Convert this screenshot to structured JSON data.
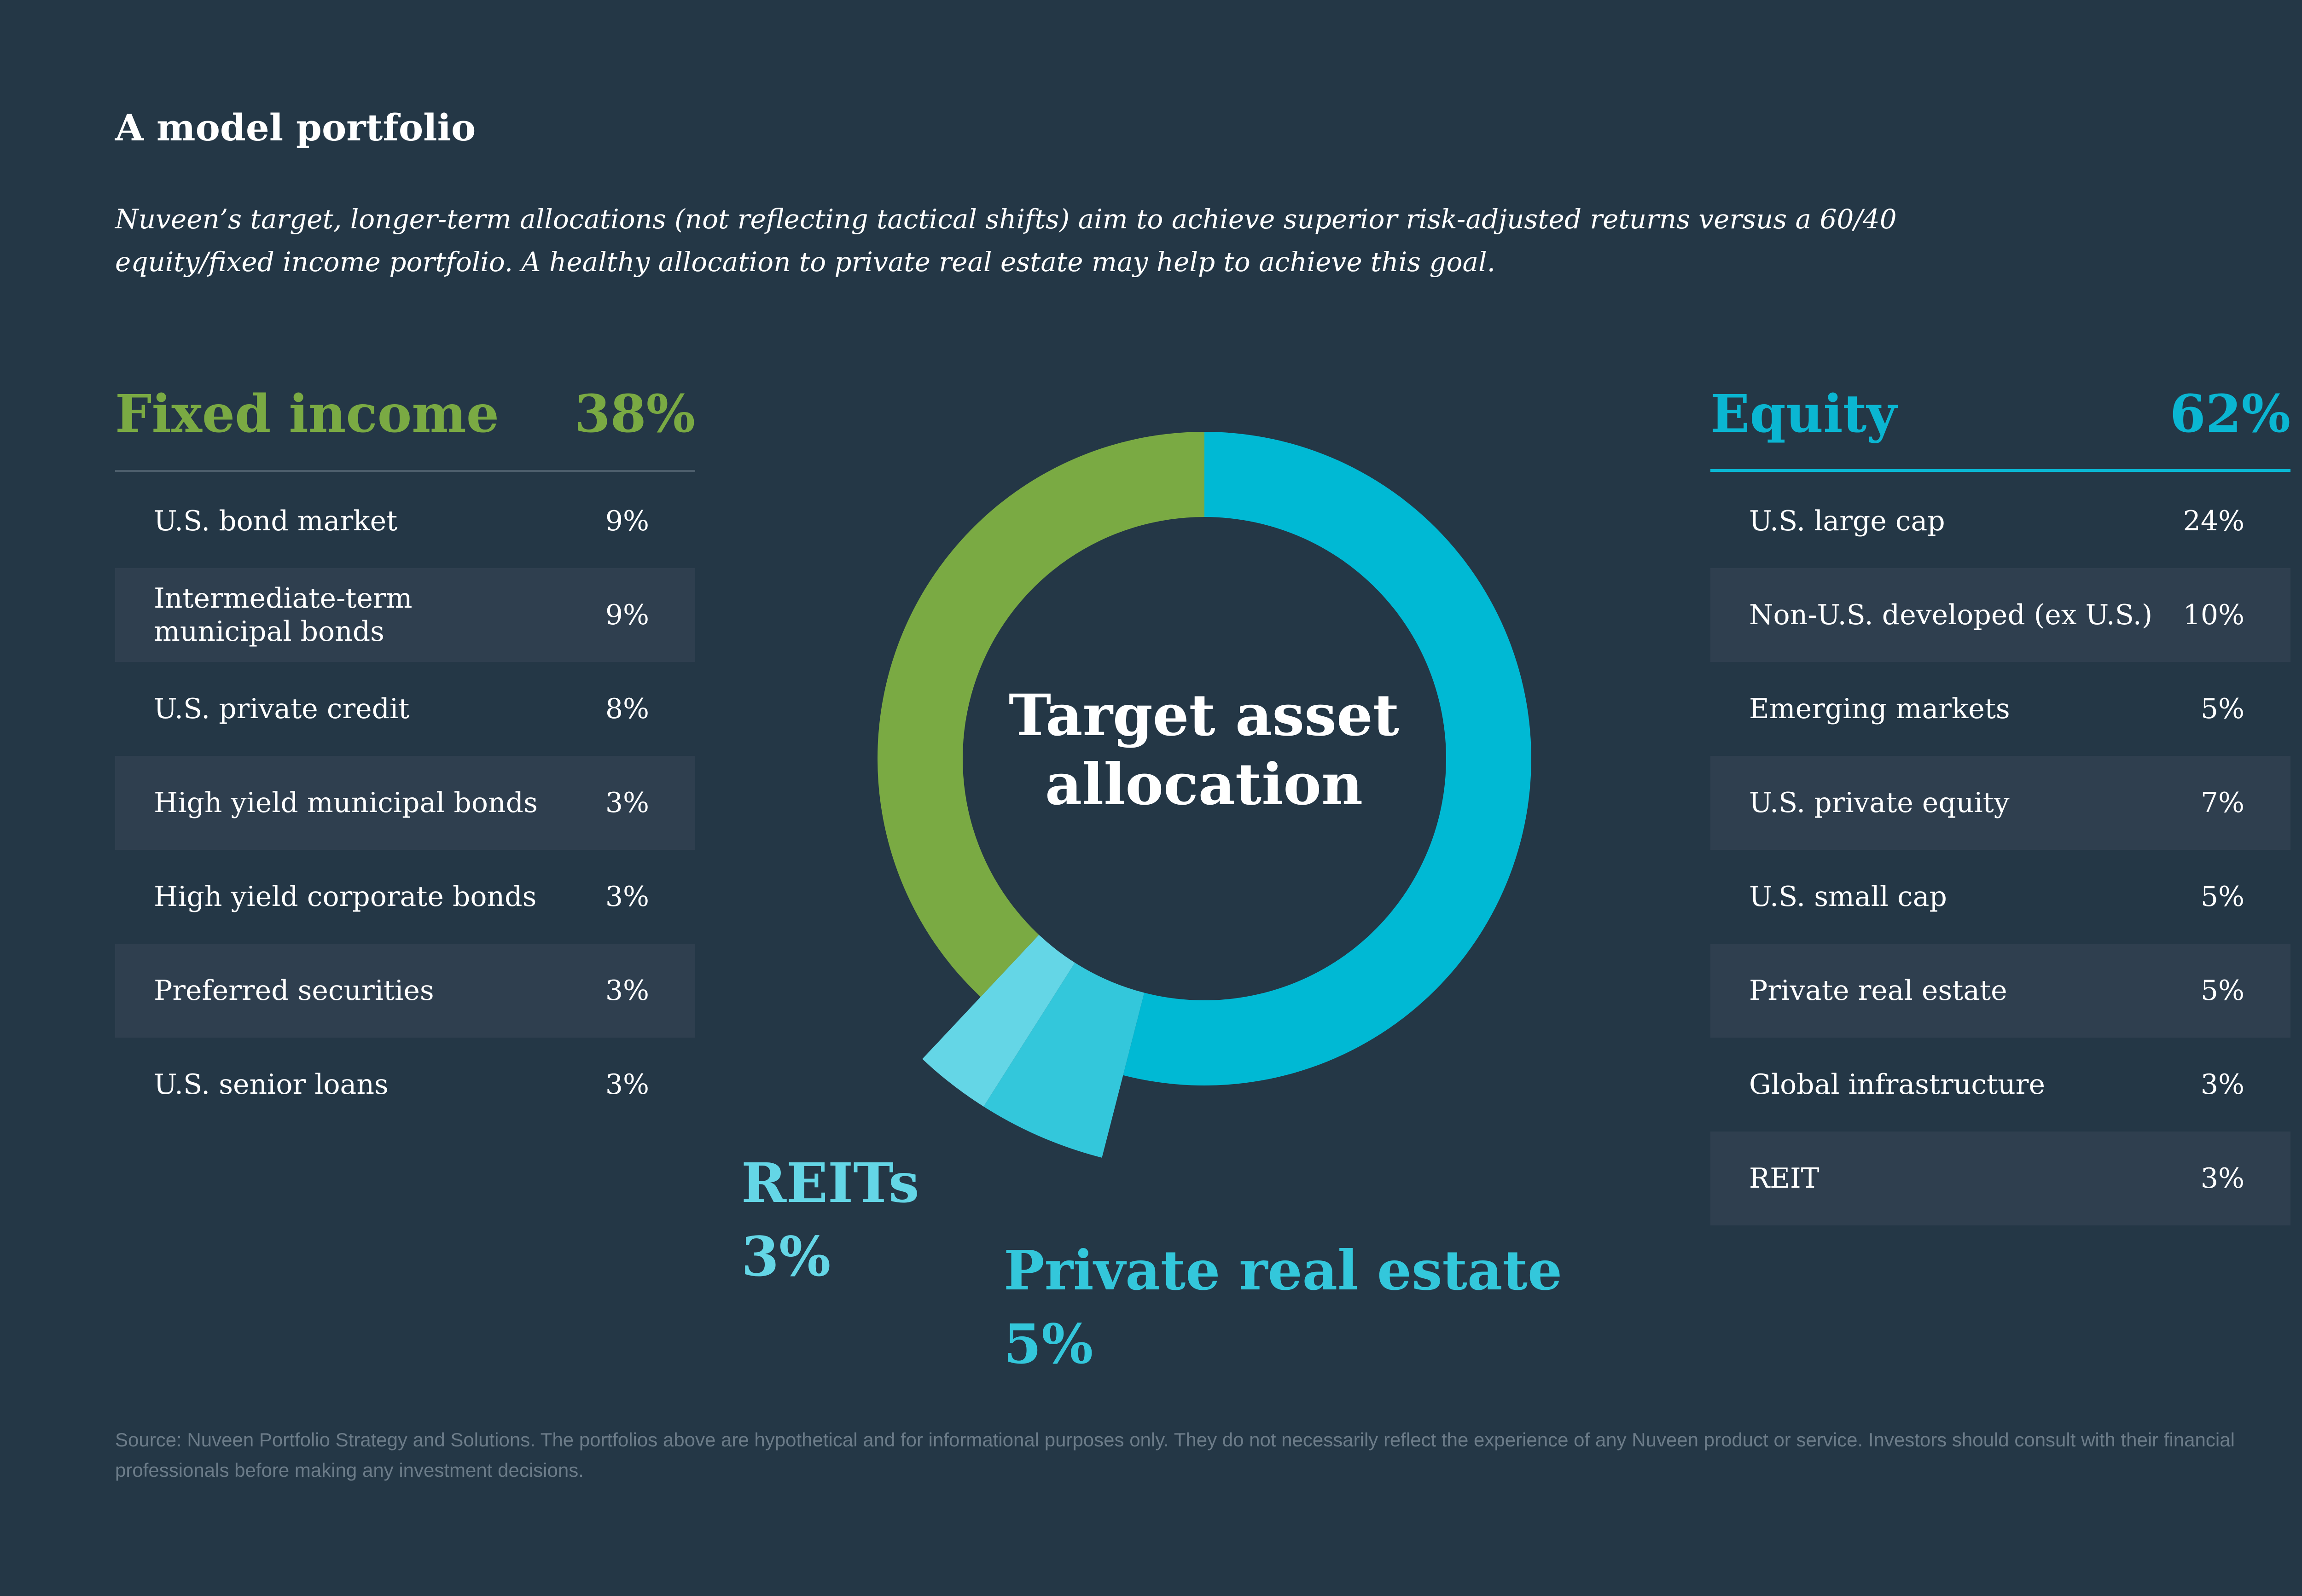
{
  "title": "A model portfolio",
  "subtitle": "Nuveen’s target, longer-term allocations (not reflecting tactical shifts) aim to achieve superior risk-adjusted returns versus a 60/40 equity/fixed income portfolio. A healthy allocation to private real estate may help to achieve this goal.",
  "fixed_income": {
    "label": "Fixed income",
    "total": "38%",
    "rows": [
      {
        "label": "U.S. bond market",
        "value": "9%"
      },
      {
        "label": "Intermediate-term\nmunicipal bonds",
        "value": "9%"
      },
      {
        "label": "U.S. private credit",
        "value": "8%"
      },
      {
        "label": "High yield municipal bonds",
        "value": "3%"
      },
      {
        "label": "High yield corporate bonds",
        "value": "3%"
      },
      {
        "label": "Preferred securities",
        "value": "3%"
      },
      {
        "label": "U.S. senior loans",
        "value": "3%"
      }
    ]
  },
  "equity": {
    "label": "Equity",
    "total": "62%",
    "rows": [
      {
        "label": "U.S. large cap",
        "value": "24%"
      },
      {
        "label": "Non-U.S. developed (ex U.S.)",
        "value": "10%"
      },
      {
        "label": "Emerging markets",
        "value": "5%"
      },
      {
        "label": "U.S. private equity",
        "value": "7%"
      },
      {
        "label": "U.S. small cap",
        "value": "5%"
      },
      {
        "label": "Private real estate",
        "value": "5%"
      },
      {
        "label": "Global infrastructure",
        "value": "3%"
      },
      {
        "label": "REIT",
        "value": "3%"
      }
    ]
  },
  "donut": {
    "center_label_line1": "Target asset",
    "center_label_line2": "allocation",
    "callouts": {
      "reits_name": "REITs",
      "reits_value": "3%",
      "pre_name": "Private real estate",
      "pre_value": "5%"
    }
  },
  "chart_data": {
    "type": "pie",
    "slices": [
      {
        "label": "Equity",
        "value": 54,
        "color": "#00b9d4"
      },
      {
        "label": "Private real estate",
        "value": 5,
        "color": "#33c7db",
        "exploded": true
      },
      {
        "label": "REITs",
        "value": 3,
        "color": "#64d6e6",
        "exploded": true
      },
      {
        "label": "Fixed income",
        "value": 38,
        "color": "#7aaa43"
      }
    ],
    "start": "top",
    "direction": "clockwise",
    "hole": true
  },
  "source": "Source: Nuveen Portfolio Strategy and Solutions. The portfolios above are hypothetical and for informational purposes only. They do not necessarily reflect the experience of any Nuveen product or service. Investors should consult with their financial professionals before making any investment decisions."
}
